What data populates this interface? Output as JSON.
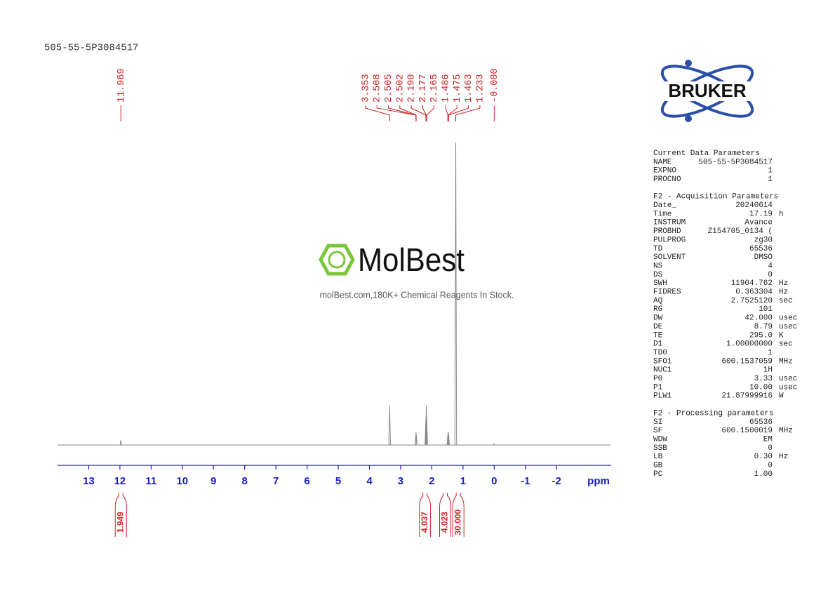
{
  "chart_data": {
    "type": "nmr",
    "title": "505-55-5P3084517",
    "x_label": "ppm",
    "xlim": [
      14,
      -3.75
    ],
    "xticks": [
      13,
      12,
      11,
      10,
      9,
      8,
      7,
      6,
      5,
      4,
      3,
      2,
      1,
      0,
      -1,
      -2
    ],
    "ylim": [
      0,
      100
    ],
    "signals": {
      "x": [
        11.969,
        3.353,
        2.508,
        2.505,
        2.502,
        2.19,
        2.177,
        2.165,
        1.486,
        1.475,
        1.463,
        1.233,
        0
      ],
      "values": [
        1.6,
        13,
        3.5,
        4.2,
        3.5,
        9,
        13,
        9,
        3.5,
        4.4,
        3.5,
        100,
        0.3
      ]
    },
    "peak_ppm": [
      11.969,
      3.353,
      2.508,
      2.505,
      2.502,
      2.19,
      2.177,
      2.165,
      1.486,
      1.475,
      1.463,
      1.233,
      0
    ],
    "peak_labels": [
      "11.969",
      "3.353",
      "2.508",
      "2.505",
      "2.502",
      "2.190",
      "2.177",
      "2.165",
      "1.486",
      "1.475",
      "1.463",
      "1.233",
      "-0.000"
    ],
    "integrals": {
      "x": [
        11.97,
        2.22,
        1.57,
        1.15
      ],
      "values": [
        1.949,
        4.037,
        4.023,
        30
      ],
      "value_labels": [
        "1.949",
        "4.037",
        "4.023",
        "30.000"
      ]
    },
    "line_color": "#888888",
    "label_color": "#cc2222",
    "axis_color": "#1a1acc"
  },
  "logo": {
    "brand": "BRUKER"
  },
  "watermark": {
    "name": "MolBest",
    "tagline": "molBest.com,180K+ Chemical Reagents In Stock."
  },
  "parameters": [
    {
      "heading": "Current Data Parameters",
      "rows": [
        [
          "NAME",
          "505-55-5P3084517"
        ],
        [
          "EXPNO",
          "1"
        ],
        [
          "PROCNO",
          "1"
        ]
      ]
    },
    {
      "heading": "F2 - Acquisition Parameters",
      "rows": [
        [
          "Date_",
          "20240614"
        ],
        [
          "Time",
          "17.19",
          "h"
        ],
        [
          "INSTRUM",
          "Avance"
        ],
        [
          "PROBHD",
          "Z154705_0134 ("
        ],
        [
          "PULPROG",
          "zg30"
        ],
        [
          "TD",
          "65536"
        ],
        [
          "SOLVENT",
          "DMSO"
        ],
        [
          "NS",
          "4"
        ],
        [
          "DS",
          "0"
        ],
        [
          "SWH",
          "11904.762",
          "Hz"
        ],
        [
          "FIDRES",
          "0.363304",
          "Hz"
        ],
        [
          "AQ",
          "2.7525120",
          "sec"
        ],
        [
          "RG",
          "101"
        ],
        [
          "DW",
          "42.000",
          "usec"
        ],
        [
          "DE",
          "8.79",
          "usec"
        ],
        [
          "TE",
          "295.0",
          "K"
        ],
        [
          "D1",
          "1.00000000",
          "sec"
        ],
        [
          "TD0",
          "1"
        ],
        [
          "SFO1",
          "600.1537059",
          "MHz"
        ],
        [
          "NUC1",
          "1H"
        ],
        [
          "P0",
          "3.33",
          "usec"
        ],
        [
          "P1",
          "10.00",
          "usec"
        ],
        [
          "PLW1",
          "21.87999916",
          "W"
        ]
      ]
    },
    {
      "heading": "F2 - Processing parameters",
      "rows": [
        [
          "SI",
          "65536"
        ],
        [
          "SF",
          "600.1500019",
          "MHz"
        ],
        [
          "WDW",
          "EM"
        ],
        [
          "SSB",
          "0"
        ],
        [
          "LB",
          "0.30",
          "Hz"
        ],
        [
          "GB",
          "0"
        ],
        [
          "PC",
          "1.00"
        ]
      ]
    }
  ]
}
